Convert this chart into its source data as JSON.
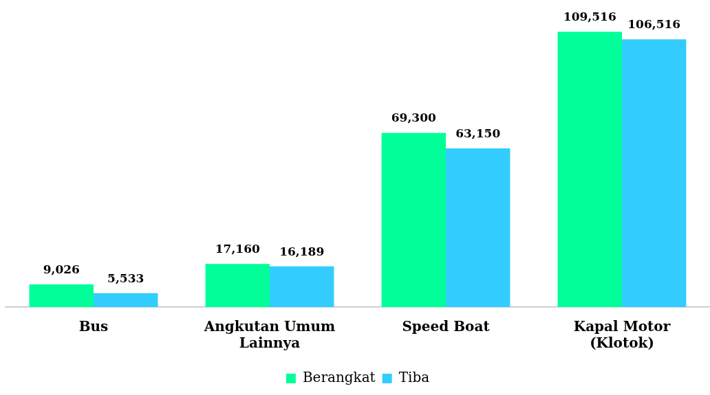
{
  "chart_data": {
    "type": "bar",
    "categories": [
      "Bus",
      "Angkutan Umum Lainnya",
      "Speed Boat",
      "Kapal Motor (Klotok)"
    ],
    "series": [
      {
        "name": "Berangkat",
        "color": "#00ff99",
        "values": [
          9026,
          17160,
          69300,
          109516
        ],
        "value_labels": [
          "9,026",
          "17,160",
          "69,300",
          "109,516"
        ]
      },
      {
        "name": "Tiba",
        "color": "#33ccff",
        "values": [
          5533,
          16189,
          63150,
          106516
        ],
        "value_labels": [
          "5,533",
          "16,189",
          "63,150",
          "106,516"
        ]
      }
    ],
    "legend": "bottom"
  }
}
